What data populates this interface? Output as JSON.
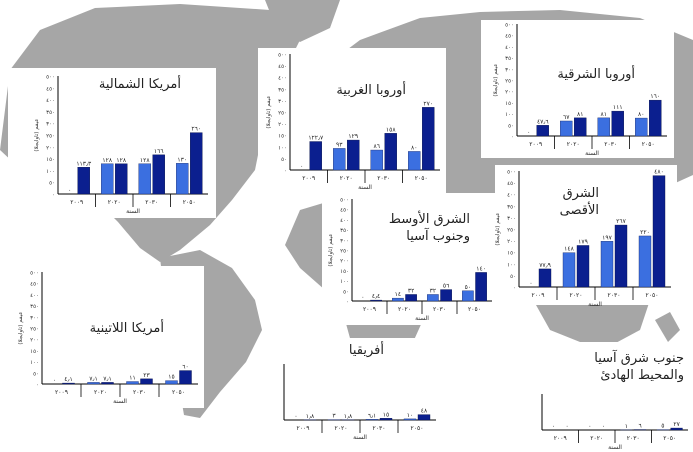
{
  "colors": {
    "light_bar": "#3b6fe0",
    "dark_bar": "#0b1f8f",
    "map_land": "#a6a6a6",
    "map_sea": "#ffffff"
  },
  "common": {
    "ylabel": "عيقم (تاوايجلا)",
    "xlabel": "السنة"
  },
  "chart_data": [
    {
      "id": "na",
      "type": "bar",
      "title": "أمريكا الشمالية",
      "categories": [
        "٢٠٠٩",
        "٢٠٢٠",
        "٢٠٣٠",
        "٢٠٥٠"
      ],
      "y_ticks": [
        "٠",
        "٥٠",
        "١٠٠",
        "١٥٠",
        "٢٠٠",
        "٢٥٠",
        "٣٠٠",
        "٣٥٠",
        "٤٠٠",
        "٤٥٠",
        "٥٠٠"
      ],
      "ylim": [
        0,
        500
      ],
      "light_values": [
        0,
        128,
        128,
        130
      ],
      "dark_values": [
        113.3,
        128,
        166,
        260
      ],
      "light_labels": [
        "٠",
        "١٢٨",
        "١٢٨",
        "١٣٠"
      ],
      "dark_labels": [
        "١١٣٫٣",
        "١٢٨",
        "١٦٦",
        "٢٦٠"
      ]
    },
    {
      "id": "we",
      "type": "bar",
      "title": "أوروبا الغربية",
      "categories": [
        "٢٠٠٩",
        "٢٠٢٠",
        "٢٠٣٠",
        "٢٠٥٠"
      ],
      "y_ticks": [
        "٠",
        "٥٠",
        "١٠٠",
        "١٥٠",
        "٢٠٠",
        "٢٥٠",
        "٣٠٠",
        "٣٥٠",
        "٤٠٠",
        "٤٥٠",
        "٥٠٠"
      ],
      "ylim": [
        0,
        500
      ],
      "light_values": [
        0,
        93,
        86,
        80
      ],
      "dark_values": [
        122.7,
        129,
        158,
        270
      ],
      "light_labels": [
        "٠",
        "٩٣",
        "٨٦",
        "٨٠"
      ],
      "dark_labels": [
        "١٢٢٫٧",
        "١٢٩",
        "١٥٨",
        "٢٧٠"
      ]
    },
    {
      "id": "ee",
      "type": "bar",
      "title": "أوروبا الشرقية",
      "categories": [
        "٢٠٠٩",
        "٢٠٢٠",
        "٢٠٣٠",
        "٢٠٥٠"
      ],
      "y_ticks": [
        "٠",
        "٥٠",
        "١٠٠",
        "١٥٠",
        "٢٠٠",
        "٢٥٠",
        "٣٠٠",
        "٣٥٠",
        "٤٠٠",
        "٤٥٠",
        "٥٠٠"
      ],
      "ylim": [
        0,
        500
      ],
      "light_values": [
        0,
        67,
        81,
        80
      ],
      "dark_values": [
        47.6,
        81,
        111,
        160
      ],
      "light_labels": [
        "٠",
        "٦٧",
        "٨١",
        "٨٠"
      ],
      "dark_labels": [
        "٤٧٫٦",
        "٨١",
        "١١١",
        "١٦٠"
      ]
    },
    {
      "id": "me",
      "type": "bar",
      "title": "الشرق الأوسط وجنوب آسيا",
      "categories": [
        "٢٠٠٩",
        "٢٠٢٠",
        "٢٠٣٠",
        "٢٠٥٠"
      ],
      "y_ticks": [
        "٠",
        "٥٠",
        "١٠٠",
        "١٥٠",
        "٢٠٠",
        "٢٥٠",
        "٣٠٠",
        "٣٥٠",
        "٤٠٠",
        "٤٥٠",
        "٥٠٠"
      ],
      "ylim": [
        0,
        500
      ],
      "light_values": [
        0,
        14,
        32,
        50
      ],
      "dark_values": [
        4.4,
        32,
        56,
        140
      ],
      "light_labels": [
        "٠",
        "١٤",
        "٣٢",
        "٥٠"
      ],
      "dark_labels": [
        "٤٫٤",
        "٣٢",
        "٥٦",
        "١٤٠"
      ]
    },
    {
      "id": "fe",
      "type": "bar",
      "title": "الشرق الأقصى",
      "categories": [
        "٢٠٠٩",
        "٢٠٢٠",
        "٢٠٣٠",
        "٢٠٥٠"
      ],
      "y_ticks": [
        "٠",
        "٥٠",
        "١٠٠",
        "١٥٠",
        "٢٠٠",
        "٢٥٠",
        "٣٠٠",
        "٣٥٠",
        "٤٠٠",
        "٤٥٠",
        "٥٠٠"
      ],
      "ylim": [
        0,
        500
      ],
      "light_values": [
        0,
        148,
        197,
        220
      ],
      "dark_values": [
        77.9,
        179,
        267,
        480
      ],
      "light_labels": [
        "٠",
        "١٤٨",
        "١٩٧",
        "٢٢٠"
      ],
      "dark_labels": [
        "٧٧٫٩",
        "١٧٩",
        "٢٦٧",
        "٤٨٠"
      ]
    },
    {
      "id": "la",
      "type": "bar",
      "title": "أمريكا اللاتينية",
      "categories": [
        "٢٠٠٩",
        "٢٠٢٠",
        "٢٠٣٠",
        "٢٠٥٠"
      ],
      "y_ticks": [
        "٠",
        "٥٠",
        "١٠٠",
        "١٥٠",
        "٢٠٠",
        "٢٥٠",
        "٣٠٠",
        "٣٥٠",
        "٤٠٠",
        "٤٥٠",
        "٥٠٠"
      ],
      "ylim": [
        0,
        500
      ],
      "light_values": [
        0,
        7.1,
        11,
        15
      ],
      "dark_values": [
        4.1,
        7.1,
        23,
        60
      ],
      "light_labels": [
        "٠",
        "٧٫١",
        "١١",
        "١٥"
      ],
      "dark_labels": [
        "٤٫١",
        "٧٫١",
        "٢٣",
        "٦٠"
      ]
    },
    {
      "id": "af",
      "type": "bar",
      "title": "أفريقيا",
      "categories": [
        "٢٠٠٩",
        "٢٠٢٠",
        "٢٠٣٠",
        "٢٠٥٠"
      ],
      "y_ticks": [],
      "ylim": [
        0,
        500
      ],
      "light_values": [
        0,
        3,
        6.1,
        10
      ],
      "dark_values": [
        1.8,
        1.8,
        15,
        48
      ],
      "light_labels": [
        "٠",
        "٣",
        "٦٫١",
        "١٠"
      ],
      "dark_labels": [
        "١٫٨",
        "١٫٨",
        "١٥",
        "٤٨"
      ]
    },
    {
      "id": "sea",
      "type": "bar",
      "title": "جنوب شرق آسيا والمحيط الهادئ",
      "categories": [
        "٢٠٠٩",
        "٢٠٢٠",
        "٢٠٣٠",
        "٢٠٥٠"
      ],
      "y_ticks": [],
      "ylim": [
        0,
        500
      ],
      "light_values": [
        0,
        0,
        1,
        5
      ],
      "dark_values": [
        0,
        0,
        6,
        27
      ],
      "light_labels": [
        "٠",
        "٠",
        "١",
        "٥"
      ],
      "dark_labels": [
        "٠",
        "٠",
        "٦",
        "٢٧"
      ]
    }
  ]
}
